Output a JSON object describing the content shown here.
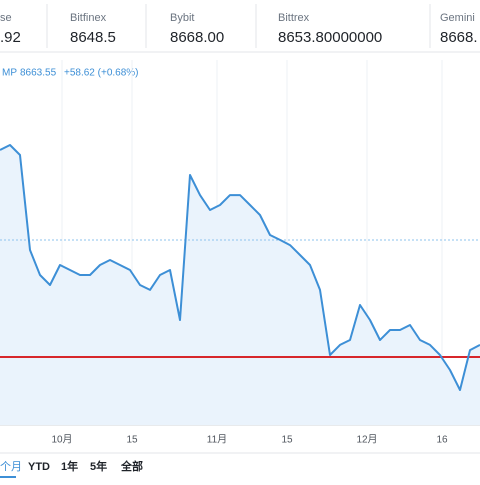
{
  "exchanges": [
    {
      "name": "se",
      "price": ".92"
    },
    {
      "name": "Bitfinex",
      "price": "8648.5"
    },
    {
      "name": "Bybit",
      "price": "8668.00"
    },
    {
      "name": "Bittrex",
      "price": "8653.80000000"
    },
    {
      "name": "Gemini",
      "price": "8668."
    }
  ],
  "legend": {
    "name": "MP",
    "price": "8663.55",
    "change": "+58.62 (+0.68%)"
  },
  "chart_data": {
    "type": "line",
    "series": [
      {
        "color": "#3d8fd6",
        "values": [
          10260,
          10301,
          10219,
          9438,
          9233,
          9151,
          9315,
          9274,
          9233,
          9233,
          9315,
          9356,
          9315,
          9274,
          9151,
          9110,
          9233,
          9274,
          8863,
          10055,
          9890,
          9767,
          9808,
          9890,
          9890,
          9808,
          9726,
          9562,
          9521,
          9479,
          9397,
          9315,
          9110,
          8575,
          8658,
          8699,
          8986,
          8863,
          8699,
          8781,
          8781,
          8822,
          8699,
          8658,
          8575,
          8452,
          8288,
          8616,
          8658
        ]
      }
    ],
    "xlim": [
      -12.4,
      83.6
    ],
    "xticks": [
      {
        "value": 0,
        "label": "10月"
      },
      {
        "value": 14,
        "label": "15"
      },
      {
        "value": 31,
        "label": "11月"
      },
      {
        "value": 45,
        "label": "15"
      },
      {
        "value": 61,
        "label": "12月"
      },
      {
        "value": 76,
        "label": "16"
      }
    ],
    "ylim": [
      8000,
      11000
    ],
    "hlines": [
      {
        "value": 8559,
        "color": "#d7262b"
      },
      {
        "value": 9521,
        "color": "#8ec3ee"
      }
    ]
  },
  "range_buttons": [
    "个月",
    "YTD",
    "1年",
    "5年",
    "全部"
  ]
}
